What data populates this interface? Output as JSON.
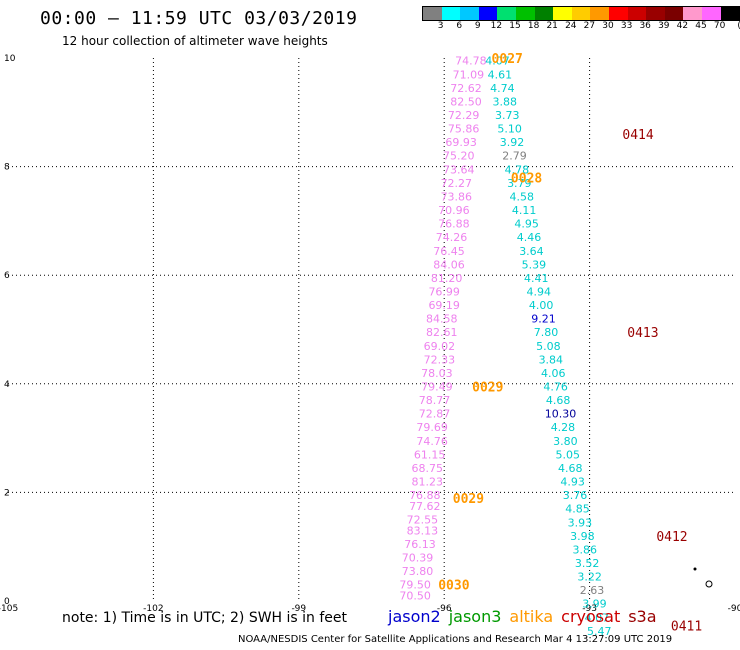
{
  "header": {
    "title": "00:00 – 11:59 UTC 03/03/2019",
    "subtitle": "12 hour collection of altimeter wave heights"
  },
  "colorbar": {
    "unit": "(ft)",
    "swatches": [
      "#808080",
      "#00ffff",
      "#00c8ff",
      "#0000ff",
      "#00e070",
      "#00c000",
      "#008000",
      "#ffff00",
      "#ffcc00",
      "#ff9900",
      "#ff0000",
      "#cc0000",
      "#990000",
      "#7a0000",
      "#ff99cc",
      "#ff66ff",
      "#000000"
    ],
    "labels": [
      "3",
      "6",
      "9",
      "12",
      "15",
      "18",
      "21",
      "24",
      "27",
      "30",
      "33",
      "36",
      "39",
      "42",
      "45",
      "70"
    ]
  },
  "footer": {
    "note": "note:  1) Time is in UTC;  2) SWH is in feet",
    "missions": [
      {
        "name": "jason2",
        "color": "#0000cc"
      },
      {
        "name": "jason3",
        "color": "#009900"
      },
      {
        "name": "altika",
        "color": "#ff9900"
      },
      {
        "name": "cryosat",
        "color": "#cc0000"
      },
      {
        "name": "s3a",
        "color": "#990000"
      }
    ],
    "credit": "NOAA/NESDIS Center for Satellite Applications and Research     Mar  4 13:27:09 UTC 2019"
  },
  "chart_data": {
    "type": "scatter",
    "xlim": [
      -105,
      -90
    ],
    "ylim": [
      0,
      10
    ],
    "xticks": [
      "-105",
      "-102",
      "-99",
      "-96",
      "-93",
      "-90"
    ],
    "yticks": [
      "0",
      "2",
      "4",
      "6",
      "8",
      "10"
    ],
    "grid": true,
    "series": [
      {
        "name": "pink track",
        "color": "#ee82ee",
        "points": [
          {
            "x": -95.45,
            "y": 9.95,
            "label": "74.78"
          },
          {
            "x": -95.5,
            "y": 9.7,
            "label": "71.09"
          },
          {
            "x": -95.55,
            "y": 9.45,
            "label": "72.62"
          },
          {
            "x": -95.55,
            "y": 9.2,
            "label": "82.50"
          },
          {
            "x": -95.6,
            "y": 8.95,
            "label": "72.29"
          },
          {
            "x": -95.6,
            "y": 8.7,
            "label": "75.86"
          },
          {
            "x": -95.65,
            "y": 8.45,
            "label": "69.93"
          },
          {
            "x": -95.7,
            "y": 8.2,
            "label": "75.20"
          },
          {
            "x": -95.7,
            "y": 7.95,
            "label": "73.64"
          },
          {
            "x": -95.75,
            "y": 7.7,
            "label": "72.27"
          },
          {
            "x": -95.75,
            "y": 7.45,
            "label": "73.86"
          },
          {
            "x": -95.8,
            "y": 7.2,
            "label": "70.96"
          },
          {
            "x": -95.8,
            "y": 6.95,
            "label": "76.88"
          },
          {
            "x": -95.85,
            "y": 6.7,
            "label": "74.26"
          },
          {
            "x": -95.9,
            "y": 6.45,
            "label": "76.45"
          },
          {
            "x": -95.9,
            "y": 6.2,
            "label": "84.06"
          },
          {
            "x": -95.95,
            "y": 5.95,
            "label": "81.20"
          },
          {
            "x": -96.0,
            "y": 5.7,
            "label": "76.99"
          },
          {
            "x": -96.0,
            "y": 5.45,
            "label": "69.19"
          },
          {
            "x": -96.05,
            "y": 5.2,
            "label": "84.58"
          },
          {
            "x": -96.05,
            "y": 4.95,
            "label": "82.61"
          },
          {
            "x": -96.1,
            "y": 4.7,
            "label": "69.02"
          },
          {
            "x": -96.1,
            "y": 4.45,
            "label": "72.33"
          },
          {
            "x": -96.15,
            "y": 4.2,
            "label": "78.03"
          },
          {
            "x": -96.15,
            "y": 3.95,
            "label": "79.49"
          },
          {
            "x": -96.2,
            "y": 3.7,
            "label": "78.77"
          },
          {
            "x": -96.2,
            "y": 3.45,
            "label": "72.87"
          },
          {
            "x": -96.25,
            "y": 3.2,
            "label": "79.69"
          },
          {
            "x": -96.25,
            "y": 2.95,
            "label": "74.76"
          },
          {
            "x": -96.3,
            "y": 2.7,
            "label": "61.15"
          },
          {
            "x": -96.35,
            "y": 2.45,
            "label": "68.75"
          },
          {
            "x": -96.35,
            "y": 2.2,
            "label": "81.23"
          },
          {
            "x": -96.4,
            "y": 1.95,
            "label": "76.88"
          },
          {
            "x": -96.4,
            "y": 1.75,
            "label": "77.62"
          },
          {
            "x": -96.45,
            "y": 1.5,
            "label": "72.55"
          },
          {
            "x": -96.45,
            "y": 1.3,
            "label": "83.13"
          },
          {
            "x": -96.5,
            "y": 1.05,
            "label": "76.13"
          },
          {
            "x": -96.55,
            "y": 0.8,
            "label": "70.39"
          },
          {
            "x": -96.55,
            "y": 0.55,
            "label": "73.80"
          },
          {
            "x": -96.6,
            "y": 0.3,
            "label": "79.50"
          },
          {
            "x": -96.6,
            "y": 0.1,
            "label": "70.50"
          }
        ]
      },
      {
        "name": "cyan track",
        "color": "#00cccc",
        "points": [
          {
            "x": -94.9,
            "y": 9.95,
            "label": "4.07"
          },
          {
            "x": -94.85,
            "y": 9.7,
            "label": "4.61"
          },
          {
            "x": -94.8,
            "y": 9.45,
            "label": "4.74"
          },
          {
            "x": -94.75,
            "y": 9.2,
            "label": "3.88"
          },
          {
            "x": -94.7,
            "y": 8.95,
            "label": "3.73"
          },
          {
            "x": -94.65,
            "y": 8.7,
            "label": "5.10"
          },
          {
            "x": -94.6,
            "y": 8.45,
            "label": "3.92"
          },
          {
            "x": -94.55,
            "y": 8.2,
            "label": "2.79",
            "color": "#808080"
          },
          {
            "x": -94.5,
            "y": 7.95,
            "label": "4.78"
          },
          {
            "x": -94.45,
            "y": 7.7,
            "label": "3.79"
          },
          {
            "x": -94.4,
            "y": 7.45,
            "label": "4.58"
          },
          {
            "x": -94.35,
            "y": 7.2,
            "label": "4.11"
          },
          {
            "x": -94.3,
            "y": 6.95,
            "label": "4.95"
          },
          {
            "x": -94.25,
            "y": 6.7,
            "label": "4.46"
          },
          {
            "x": -94.2,
            "y": 6.45,
            "label": "3.64"
          },
          {
            "x": -94.15,
            "y": 6.2,
            "label": "5.39"
          },
          {
            "x": -94.1,
            "y": 5.95,
            "label": "4.41"
          },
          {
            "x": -94.05,
            "y": 5.7,
            "label": "4.94"
          },
          {
            "x": -94.0,
            "y": 5.45,
            "label": "4.00"
          },
          {
            "x": -93.95,
            "y": 5.2,
            "label": "9.21",
            "color": "#0000cc"
          },
          {
            "x": -93.9,
            "y": 4.95,
            "label": "7.80"
          },
          {
            "x": -93.85,
            "y": 4.7,
            "label": "5.08"
          },
          {
            "x": -93.8,
            "y": 4.45,
            "label": "3.84"
          },
          {
            "x": -93.75,
            "y": 4.2,
            "label": "4.06"
          },
          {
            "x": -93.7,
            "y": 3.95,
            "label": "4.76"
          },
          {
            "x": -93.65,
            "y": 3.7,
            "label": "4.68"
          },
          {
            "x": -93.6,
            "y": 3.45,
            "label": "10.30",
            "color": "#000099"
          },
          {
            "x": -93.55,
            "y": 3.2,
            "label": "4.28"
          },
          {
            "x": -93.5,
            "y": 2.95,
            "label": "3.80"
          },
          {
            "x": -93.45,
            "y": 2.7,
            "label": "5.05"
          },
          {
            "x": -93.4,
            "y": 2.45,
            "label": "4.68"
          },
          {
            "x": -93.35,
            "y": 2.2,
            "label": "4.93"
          },
          {
            "x": -93.3,
            "y": 1.95,
            "label": "3.76"
          },
          {
            "x": -93.25,
            "y": 1.7,
            "label": "4.85"
          },
          {
            "x": -93.2,
            "y": 1.45,
            "label": "3.93"
          },
          {
            "x": -93.15,
            "y": 1.2,
            "label": "3.98"
          },
          {
            "x": -93.1,
            "y": 0.95,
            "label": "3.86"
          },
          {
            "x": -93.05,
            "y": 0.7,
            "label": "3.52"
          },
          {
            "x": -93.0,
            "y": 0.45,
            "label": "3.22"
          },
          {
            "x": -92.95,
            "y": 0.2,
            "label": "2.63",
            "color": "#808080"
          },
          {
            "x": -92.9,
            "y": -0.05,
            "label": "3.99"
          },
          {
            "x": -92.85,
            "y": -0.3,
            "label": "4.07"
          },
          {
            "x": -92.8,
            "y": -0.55,
            "label": "5.47"
          }
        ]
      }
    ],
    "time_labels": [
      {
        "x": -94.7,
        "y": 10.0,
        "label": "0027",
        "color": "#ff9900"
      },
      {
        "x": -94.3,
        "y": 7.8,
        "label": "0028",
        "color": "#ff9900"
      },
      {
        "x": -95.1,
        "y": 3.95,
        "label": "0029",
        "color": "#ff9900"
      },
      {
        "x": -95.5,
        "y": 1.9,
        "label": "0029",
        "color": "#ff9900"
      },
      {
        "x": -95.8,
        "y": 0.3,
        "label": "0030",
        "color": "#ff9900"
      },
      {
        "x": -92.0,
        "y": 8.6,
        "label": "0414",
        "color": "#990000"
      },
      {
        "x": -91.9,
        "y": 4.95,
        "label": "0413",
        "color": "#990000"
      },
      {
        "x": -91.3,
        "y": 1.2,
        "label": "0412",
        "color": "#990000"
      },
      {
        "x": -91.0,
        "y": -0.45,
        "label": "0411",
        "color": "#990000"
      }
    ]
  }
}
